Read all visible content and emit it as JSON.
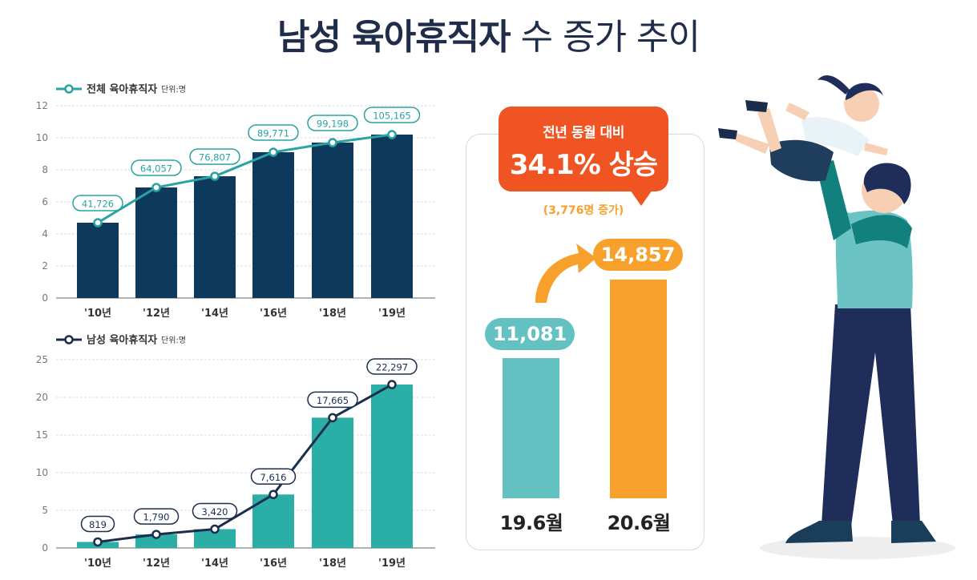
{
  "title": {
    "bold": "남성 육아휴직자",
    "light": " 수 증가 추이"
  },
  "chart_data": [
    {
      "type": "bar",
      "legend": "전체 육아휴직자",
      "unit": "단위:명",
      "categories": [
        "'10년",
        "'12년",
        "'14년",
        "'16년",
        "'18년",
        "'19년"
      ],
      "values": [
        4.7,
        6.9,
        7.6,
        9.1,
        9.7,
        10.2
      ],
      "line_labels": [
        "41,726",
        "64,057",
        "76,807",
        "89,771",
        "99,198",
        "105,165"
      ],
      "yticks": [
        "0",
        "2",
        "4",
        "6",
        "8",
        "10",
        "12"
      ],
      "ylim": [
        0,
        12
      ],
      "colors": {
        "bar": "#0d3a5c",
        "line": "#2aa3a3"
      }
    },
    {
      "type": "bar",
      "legend": "남성 육아휴직자",
      "unit": "단위:명",
      "categories": [
        "'10년",
        "'12년",
        "'14년",
        "'16년",
        "'18년",
        "'19년"
      ],
      "values": [
        0.8,
        1.8,
        2.5,
        7.1,
        17.3,
        21.7
      ],
      "line_labels": [
        "819",
        "1,790",
        "3,420",
        "7,616",
        "17,665",
        "22,297"
      ],
      "yticks": [
        "0",
        "5",
        "10",
        "15",
        "20",
        "25"
      ],
      "ylim": [
        0,
        25
      ],
      "colors": {
        "bar": "#2aaea6",
        "line": "#1c2e4e"
      }
    },
    {
      "type": "bar",
      "categories": [
        "19.6월",
        "20.6월"
      ],
      "values": [
        11081,
        14857
      ],
      "value_labels": [
        "11,081",
        "14,857"
      ],
      "callout_line1": "전년 동월 대비",
      "callout_line2": "34.1% 상승",
      "increase_note": "(3,776명 증가)",
      "colors": {
        "first": "#63c1c2",
        "second": "#f7a12c",
        "callout": "#f05423"
      }
    }
  ]
}
